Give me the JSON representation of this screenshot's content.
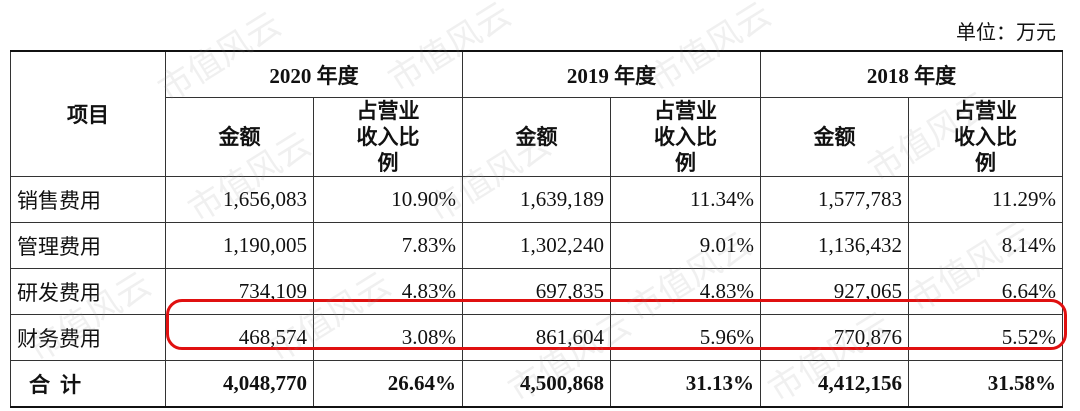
{
  "unit": "单位：万元",
  "watermark": "市值风云",
  "table": {
    "item_header": "项目",
    "years": [
      "2020 年度",
      "2019 年度",
      "2018 年度"
    ],
    "sub_headers": [
      "金额",
      "占营业收入比例"
    ],
    "rows": [
      [
        "销售费用",
        "1,656,083",
        "10.90%",
        "1,639,189",
        "11.34%",
        "1,577,783",
        "11.29%"
      ],
      [
        "管理费用",
        "1,190,005",
        "7.83%",
        "1,302,240",
        "9.01%",
        "1,136,432",
        "8.14%"
      ],
      [
        "研发费用",
        "734,109",
        "4.83%",
        "697,835",
        "4.83%",
        "927,065",
        "6.64%"
      ],
      [
        "财务费用",
        "468,574",
        "3.08%",
        "861,604",
        "5.96%",
        "770,876",
        "5.52%"
      ]
    ],
    "total": [
      "合计",
      "4,048,770",
      "26.64%",
      "4,500,868",
      "31.13%",
      "4,412,156",
      "31.58%"
    ]
  }
}
